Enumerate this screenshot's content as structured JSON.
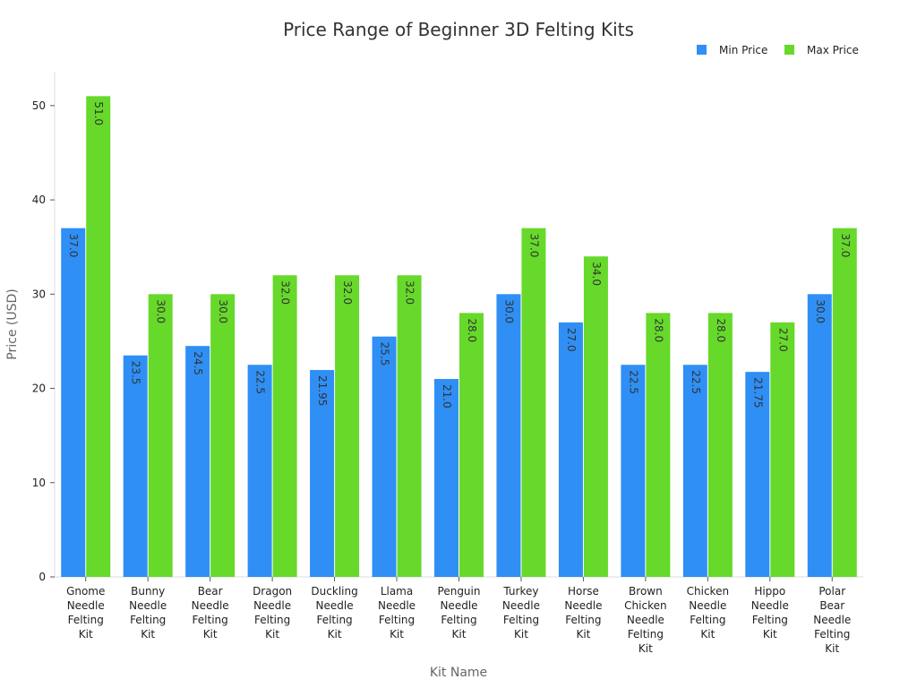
{
  "chart_data": {
    "type": "bar",
    "title": "Price Range of Beginner 3D Felting Kits",
    "xlabel": "Kit Name",
    "ylabel": "Price (USD)",
    "ylim": [
      0,
      53.6
    ],
    "yticks": [
      "0",
      "10",
      "20",
      "30",
      "40",
      "50"
    ],
    "legend_position": "top-right",
    "categories": [
      [
        "Gnome",
        "Needle",
        "Felting",
        "Kit"
      ],
      [
        "Bunny",
        "Needle",
        "Felting",
        "Kit"
      ],
      [
        "Bear",
        "Needle",
        "Felting",
        "Kit"
      ],
      [
        "Dragon",
        "Needle",
        "Felting",
        "Kit"
      ],
      [
        "Duckling",
        "Needle",
        "Felting",
        "Kit"
      ],
      [
        "Llama",
        "Needle",
        "Felting",
        "Kit"
      ],
      [
        "Penguin",
        "Needle",
        "Felting",
        "Kit"
      ],
      [
        "Turkey",
        "Needle",
        "Felting",
        "Kit"
      ],
      [
        "Horse",
        "Needle",
        "Felting",
        "Kit"
      ],
      [
        "Brown",
        "Chicken",
        "Needle",
        "Felting",
        "Kit"
      ],
      [
        "Chicken",
        "Needle",
        "Felting",
        "Kit"
      ],
      [
        "Hippo",
        "Needle",
        "Felting",
        "Kit"
      ],
      [
        "Polar",
        "Bear",
        "Needle",
        "Felting",
        "Kit"
      ]
    ],
    "series": [
      {
        "name": "Min Price",
        "color": "#2f8ff5",
        "values": [
          37.0,
          23.5,
          24.5,
          22.5,
          21.95,
          25.5,
          21.0,
          30.0,
          27.0,
          22.5,
          22.5,
          21.75,
          30.0
        ],
        "labels": [
          "37.0",
          "23.5",
          "24.5",
          "22.5",
          "21.95",
          "25.5",
          "21.0",
          "30.0",
          "27.0",
          "22.5",
          "22.5",
          "21.75",
          "30.0"
        ]
      },
      {
        "name": "Max Price",
        "color": "#66d92a",
        "values": [
          51.0,
          30.0,
          30.0,
          32.0,
          32.0,
          32.0,
          28.0,
          37.0,
          34.0,
          28.0,
          28.0,
          27.0,
          37.0
        ],
        "labels": [
          "51.0",
          "30.0",
          "30.0",
          "32.0",
          "32.0",
          "32.0",
          "28.0",
          "37.0",
          "34.0",
          "28.0",
          "28.0",
          "27.0",
          "37.0"
        ]
      }
    ]
  }
}
